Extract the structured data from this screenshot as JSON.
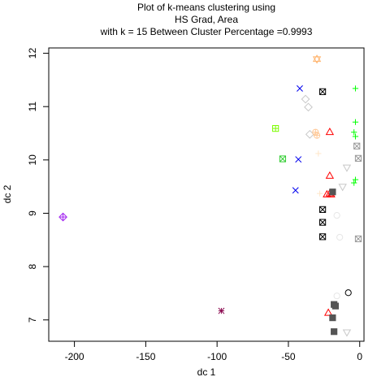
{
  "chart_data": {
    "type": "scatter",
    "title_lines": [
      "Plot of k-means clustering using",
      "HS Grad, Area",
      "with  k = 15 Between Cluster Percentage =0.9993"
    ],
    "xlabel": "dc 1",
    "ylabel": "dc 2",
    "xlim": [
      -218,
      3
    ],
    "ylim": [
      6.6,
      12.1
    ],
    "xticks": [
      -200,
      -150,
      -100,
      -50,
      0
    ],
    "xtick_labels": [
      "-200",
      "-150",
      "-100",
      "-50",
      "0"
    ],
    "yticks": [
      7,
      8,
      9,
      10,
      11,
      12
    ],
    "ytick_labels": [
      "7",
      "8",
      "9",
      "10",
      "11",
      "12"
    ],
    "grid": false,
    "series": [
      {
        "color": "#a020f0",
        "marker": "diamond-plus",
        "points": [
          {
            "x": -208,
            "y": 8.93
          }
        ]
      },
      {
        "color": "#8b0a50",
        "marker": "asterisk",
        "points": [
          {
            "x": -97,
            "y": 7.17
          }
        ]
      },
      {
        "color": "#7cfc00",
        "marker": "square-plus",
        "points": [
          {
            "x": -59,
            "y": 10.59
          }
        ]
      },
      {
        "color": "#32cd32",
        "marker": "square-cross",
        "points": [
          {
            "x": -54,
            "y": 10.02
          }
        ]
      },
      {
        "color": "#0000ee",
        "marker": "x",
        "points": [
          {
            "x": -42,
            "y": 11.34
          },
          {
            "x": -43,
            "y": 10.01
          },
          {
            "x": -45,
            "y": 9.43
          }
        ]
      },
      {
        "color": "#ffb46e",
        "marker": "star-of-david",
        "points": [
          {
            "x": -30,
            "y": 11.89
          }
        ]
      },
      {
        "color": "#c8c8c8",
        "marker": "diamond",
        "points": [
          {
            "x": -38,
            "y": 11.14
          },
          {
            "x": -36,
            "y": 10.99
          },
          {
            "x": -35,
            "y": 10.48
          }
        ]
      },
      {
        "color": "#ffc896",
        "marker": "plus-circle",
        "points": [
          {
            "x": -31,
            "y": 10.52
          },
          {
            "x": -30,
            "y": 10.46
          }
        ]
      },
      {
        "color": "#ffe6c8",
        "marker": "plus",
        "points": [
          {
            "x": -29,
            "y": 10.12
          },
          {
            "x": -28,
            "y": 9.37
          }
        ]
      },
      {
        "color": "#000000",
        "marker": "square-cross",
        "points": [
          {
            "x": -26,
            "y": 11.28
          },
          {
            "x": -26,
            "y": 9.07
          },
          {
            "x": -26,
            "y": 8.83
          },
          {
            "x": -26,
            "y": 8.56
          }
        ]
      },
      {
        "color": "#ff0000",
        "marker": "triangle",
        "points": [
          {
            "x": -21,
            "y": 10.52
          },
          {
            "x": -21,
            "y": 9.7
          },
          {
            "x": -21,
            "y": 9.37
          },
          {
            "x": -20,
            "y": 9.35
          },
          {
            "x": -22,
            "y": 7.13
          }
        ]
      },
      {
        "color": "#ff0000",
        "marker": "triangle",
        "points": [
          {
            "x": -23,
            "y": 9.35
          }
        ]
      },
      {
        "color": "#555555",
        "marker": "square",
        "points": [
          {
            "x": -19,
            "y": 9.4
          },
          {
            "x": -18,
            "y": 7.29
          },
          {
            "x": -17,
            "y": 7.26
          },
          {
            "x": -19,
            "y": 7.04
          },
          {
            "x": -18,
            "y": 6.78
          }
        ]
      },
      {
        "color": "#00ff00",
        "marker": "plus",
        "points": [
          {
            "x": -3,
            "y": 11.34
          },
          {
            "x": -3,
            "y": 10.71
          },
          {
            "x": -4,
            "y": 10.52
          },
          {
            "x": -3,
            "y": 10.44
          },
          {
            "x": -3,
            "y": 9.63
          },
          {
            "x": -4,
            "y": 9.57
          }
        ]
      },
      {
        "color": "#999999",
        "marker": "square-cross",
        "points": [
          {
            "x": -2,
            "y": 10.26
          },
          {
            "x": -1,
            "y": 10.03
          },
          {
            "x": -1,
            "y": 8.52
          }
        ]
      },
      {
        "color": "#c8c8c8",
        "marker": "triangle-down",
        "points": [
          {
            "x": -9,
            "y": 9.86
          },
          {
            "x": -12,
            "y": 9.5
          },
          {
            "x": -9,
            "y": 6.77
          }
        ]
      },
      {
        "color": "#000000",
        "marker": "circle",
        "points": [
          {
            "x": -8,
            "y": 7.51
          }
        ]
      },
      {
        "color": "#e6e6e6",
        "marker": "circle",
        "points": [
          {
            "x": -16,
            "y": 8.96
          },
          {
            "x": -14,
            "y": 8.55
          },
          {
            "x": -16,
            "y": 7.45
          }
        ]
      }
    ]
  }
}
